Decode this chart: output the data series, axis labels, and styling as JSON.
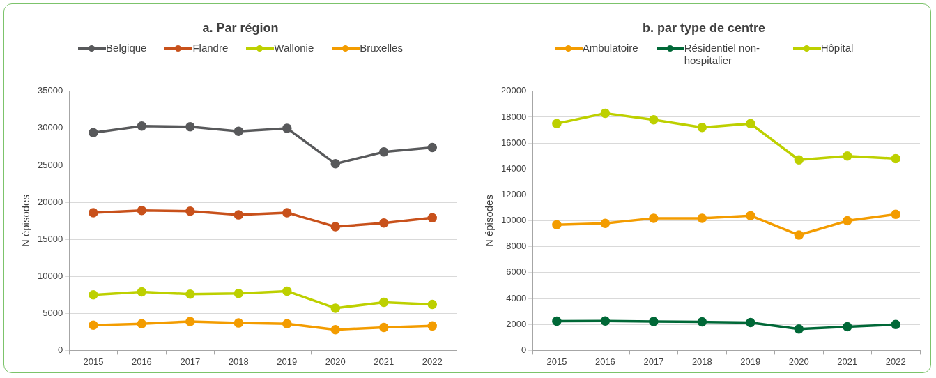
{
  "chart_data": [
    {
      "type": "line",
      "title": "a. Par région",
      "ylabel": "N épisodes",
      "categories": [
        "2015",
        "2016",
        "2017",
        "2018",
        "2019",
        "2020",
        "2021",
        "2022"
      ],
      "ylim": [
        0,
        35000
      ],
      "yticks": [
        0,
        5000,
        10000,
        15000,
        20000,
        25000,
        30000,
        35000
      ],
      "grid": "y",
      "legend": "top",
      "marker": "circle",
      "line_style": "solid",
      "series": [
        {
          "name": "Belgique",
          "color": "#58595b",
          "values": [
            29400,
            30300,
            30200,
            29600,
            30000,
            25200,
            26800,
            27400
          ]
        },
        {
          "name": "Flandre",
          "color": "#c8511b",
          "values": [
            18600,
            18900,
            18800,
            18300,
            18600,
            16700,
            17200,
            17900
          ]
        },
        {
          "name": "Wallonie",
          "color": "#bdd000",
          "values": [
            7500,
            7900,
            7600,
            7700,
            8000,
            5700,
            6500,
            6200
          ]
        },
        {
          "name": "Bruxelles",
          "color": "#f39c00",
          "values": [
            3400,
            3600,
            3900,
            3700,
            3600,
            2800,
            3100,
            3300
          ]
        }
      ]
    },
    {
      "type": "line",
      "title": "b. par type de centre",
      "ylabel": "N épisodes",
      "categories": [
        "2015",
        "2016",
        "2017",
        "2018",
        "2019",
        "2020",
        "2021",
        "2022"
      ],
      "ylim": [
        0,
        20000
      ],
      "yticks": [
        0,
        2000,
        4000,
        6000,
        8000,
        10000,
        12000,
        14000,
        16000,
        18000,
        20000
      ],
      "grid": "y",
      "legend": "top",
      "marker": "circle",
      "line_style": "solid",
      "series": [
        {
          "name": "Ambulatoire",
          "color": "#f39c00",
          "values": [
            9700,
            9800,
            10200,
            10200,
            10400,
            8900,
            10000,
            10500
          ]
        },
        {
          "name": "Résidentiel non-hospitalier",
          "color": "#006837",
          "values": [
            2250,
            2270,
            2230,
            2200,
            2150,
            1650,
            1820,
            2000
          ]
        },
        {
          "name": "Hôpital",
          "color": "#bdd000",
          "values": [
            17500,
            18300,
            17800,
            17200,
            17500,
            14700,
            15000,
            14800
          ]
        }
      ]
    }
  ]
}
